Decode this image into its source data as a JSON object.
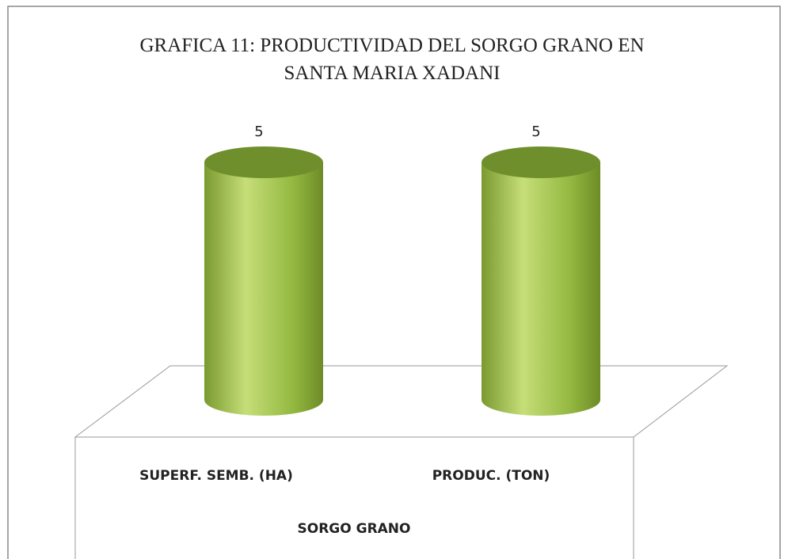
{
  "chart_data": {
    "type": "bar",
    "title": "GRAFICA 11: PRODUCTIVIDAD DEL SORGO GRANO EN SANTA MARIA XADANI",
    "categories": [
      "SUPERF. SEMB. (HA)",
      "PRODUC. (TON)"
    ],
    "group": "SORGO GRANO",
    "values": [
      5,
      5
    ],
    "color": "#8db13a",
    "ylim": [
      0,
      5
    ]
  }
}
